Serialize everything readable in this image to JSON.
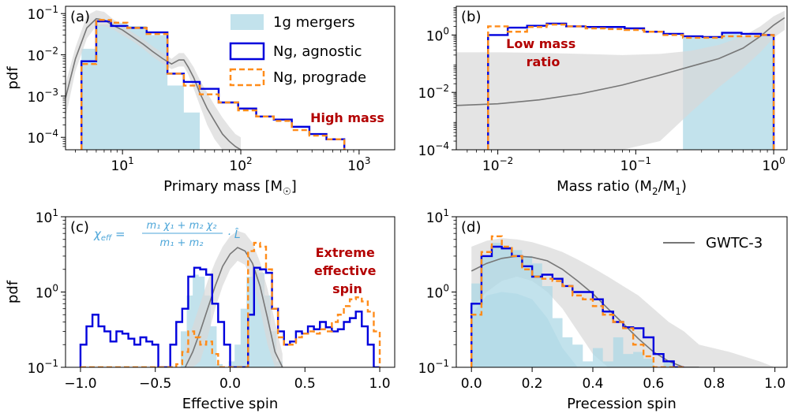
{
  "figure": {
    "colors": {
      "mergers_1g": "#add8e6",
      "ng_agnostic": "#0000dd",
      "ng_prograde": "#ff8c1a",
      "gwtc3_line": "#777777",
      "gwtc3_band": "#d9d9d9",
      "annotation": "#b30000",
      "formula": "#4da6d9"
    }
  },
  "chart_data": [
    {
      "type": "histogram",
      "panel_label": "(a)",
      "xlabel": "Primary mass [M",
      "xlabel_suffix": "]",
      "ylabel": "pdf",
      "xscale": "log",
      "yscale": "log",
      "xlim": [
        3.3,
        2000
      ],
      "ylim": [
        5e-05,
        0.15
      ],
      "xticks": [
        {
          "v": 10,
          "label": "10",
          "exp": "1"
        },
        {
          "v": 100,
          "label": "10",
          "exp": "2"
        },
        {
          "v": 1000,
          "label": "10",
          "exp": "3"
        }
      ],
      "yticks": [
        {
          "v": 0.0001,
          "label": "10",
          "exp": "−4"
        },
        {
          "v": 0.001,
          "label": "10",
          "exp": "−3"
        },
        {
          "v": 0.01,
          "label": "10",
          "exp": "−2"
        },
        {
          "v": 0.1,
          "label": "10",
          "exp": "−1"
        }
      ],
      "legend": {
        "position": "top-right",
        "entries": [
          "1g mergers",
          "Ng, agnostic",
          "Ng, prograde"
        ]
      },
      "annotation": "High mass",
      "edges": [
        4.5,
        6,
        8,
        11,
        16,
        24,
        33,
        45,
        65,
        95,
        135,
        190,
        270,
        380,
        530,
        750
      ],
      "fill_1g": [
        0.014,
        0.055,
        0.06,
        0.05,
        0.03,
        0.0018,
        0.0004
      ],
      "agnostic": [
        0.007,
        0.065,
        0.05,
        0.045,
        0.035,
        0.0035,
        0.0022,
        0.0015,
        0.0007,
        0.0005,
        0.00032,
        0.00027,
        0.00018,
        0.00012,
        9e-05
      ],
      "prograde": [
        0.006,
        0.07,
        0.06,
        0.045,
        0.032,
        0.0035,
        0.0018,
        0.0011,
        0.0007,
        0.00045,
        0.00032,
        0.00025,
        0.00015,
        0.00011,
        9e-05
      ],
      "gwtc3": {
        "x": [
          3.3,
          4,
          5,
          6,
          7,
          8.5,
          10,
          12,
          15,
          18,
          22,
          26,
          30,
          33,
          36,
          40,
          45,
          52,
          60,
          70,
          80,
          90,
          100
        ],
        "y": [
          0.0009,
          0.008,
          0.045,
          0.075,
          0.07,
          0.05,
          0.04,
          0.028,
          0.018,
          0.012,
          0.008,
          0.006,
          0.0075,
          0.0075,
          0.005,
          0.0028,
          0.0012,
          0.0005,
          0.00025,
          0.00012,
          8e-05,
          6e-05,
          5e-05
        ],
        "lo": [
          0.0003,
          0.004,
          0.025,
          0.05,
          0.05,
          0.04,
          0.03,
          0.022,
          0.014,
          0.009,
          0.006,
          0.0045,
          0.0052,
          0.0052,
          0.0033,
          0.0015,
          0.0006,
          0.0002,
          9e-05,
          5e-05,
          5e-05,
          5e-05,
          5e-05
        ],
        "hi": [
          0.002,
          0.015,
          0.09,
          0.12,
          0.11,
          0.07,
          0.055,
          0.036,
          0.024,
          0.016,
          0.011,
          0.008,
          0.011,
          0.011,
          0.008,
          0.005,
          0.0025,
          0.0012,
          0.0006,
          0.0003,
          0.00018,
          0.00012,
          0.0001
        ]
      }
    },
    {
      "type": "histogram",
      "panel_label": "(b)",
      "xlabel": "Mass ratio (M",
      "xlabel_sub1": "2",
      "xlabel_mid": "/M",
      "xlabel_sub2": "1",
      "xlabel_suffix": ")",
      "xscale": "log",
      "yscale": "log",
      "xlim": [
        0.005,
        1.25
      ],
      "ylim": [
        0.0001,
        10
      ],
      "xticks": [
        {
          "v": 0.01,
          "label": "10",
          "exp": "−2"
        },
        {
          "v": 0.1,
          "label": "10",
          "exp": "−1"
        },
        {
          "v": 1,
          "label": "10",
          "exp": "0"
        }
      ],
      "yticks": [
        {
          "v": 0.0001,
          "label": "10",
          "exp": "−4"
        },
        {
          "v": 0.01,
          "label": "10",
          "exp": "−2"
        },
        {
          "v": 1,
          "label": "10",
          "exp": "0"
        }
      ],
      "annotation_lines": [
        "Low mass",
        "ratio"
      ],
      "edges": [
        0.0085,
        0.0118,
        0.0163,
        0.0226,
        0.0313,
        0.0433,
        0.06,
        0.0831,
        0.115,
        0.159,
        0.22,
        0.305,
        0.422,
        0.585,
        0.81,
        1.0
      ],
      "fill_edges": [
        0.22,
        0.305,
        0.422,
        0.585,
        0.81,
        1.0
      ],
      "fill_1g": [
        0.8,
        0.9,
        1.1,
        0.9,
        0.9
      ],
      "agnostic": [
        1.0,
        1.8,
        2.1,
        2.5,
        2.0,
        1.9,
        1.9,
        1.7,
        1.3,
        1.1,
        0.9,
        0.85,
        1.2,
        1.1,
        1.0
      ],
      "prograde": [
        2.0,
        1.3,
        1.9,
        2.3,
        2.0,
        1.7,
        1.6,
        1.5,
        1.3,
        1.0,
        0.8,
        0.8,
        0.9,
        0.9,
        1.0
      ],
      "gwtc3": {
        "x": [
          0.005,
          0.01,
          0.02,
          0.04,
          0.08,
          0.15,
          0.25,
          0.4,
          0.6,
          0.8,
          1.0,
          1.2
        ],
        "y": [
          0.0035,
          0.004,
          0.0055,
          0.009,
          0.018,
          0.04,
          0.08,
          0.15,
          0.35,
          0.9,
          2.2,
          4.0
        ],
        "lo": [
          0.0001,
          0.0001,
          0.0001,
          0.0001,
          0.0001,
          0.0002,
          0.002,
          0.015,
          0.07,
          0.25,
          0.8,
          1.5
        ],
        "hi": [
          0.25,
          0.25,
          0.24,
          0.22,
          0.2,
          0.22,
          0.28,
          0.45,
          0.9,
          2.0,
          4.5,
          7.0
        ]
      }
    },
    {
      "type": "histogram",
      "panel_label": "(c)",
      "formula_lhs": "χ",
      "formula_sub": "eff",
      "formula_num": "m₁ χ₁ + m₂ χ₂",
      "formula_den": "m₁ + m₂",
      "formula_tail": "· L̂",
      "xlabel": "Effective spin",
      "ylabel": "pdf",
      "xscale": "linear",
      "yscale": "log",
      "xlim": [
        -1.1,
        1.1
      ],
      "ylim": [
        0.1,
        10
      ],
      "xticks": [
        {
          "v": -1,
          "label": "−1.0"
        },
        {
          "v": -0.5,
          "label": "−0.5"
        },
        {
          "v": 0,
          "label": "0.0"
        },
        {
          "v": 0.5,
          "label": "0.5"
        },
        {
          "v": 1,
          "label": "1.0"
        }
      ],
      "yticks": [
        {
          "v": 0.1,
          "label": "10",
          "exp": "−1"
        },
        {
          "v": 1,
          "label": "10",
          "exp": "0"
        },
        {
          "v": 10,
          "label": "10",
          "exp": "1"
        }
      ],
      "annotation_lines": [
        "Extreme",
        "effective",
        "spin"
      ],
      "fill_edges": [
        -0.33,
        -0.29,
        -0.25,
        -0.21,
        -0.17,
        -0.13,
        -0.09,
        -0.05,
        -0.01,
        0.03,
        0.07,
        0.11,
        0.15,
        0.19,
        0.23,
        0.27,
        0.31,
        0.35
      ],
      "fill_1g": [
        0.3,
        0.9,
        1.7,
        1.6,
        0.9,
        0.35,
        0.11,
        0.1,
        0.12,
        0.2,
        0.6,
        1.6,
        2.1,
        1.8,
        0.9,
        0.3,
        0.12
      ],
      "edges": [
        -1.0,
        -0.96,
        -0.92,
        -0.88,
        -0.84,
        -0.8,
        -0.76,
        -0.72,
        -0.68,
        -0.64,
        -0.6,
        -0.56,
        -0.52,
        -0.48,
        -0.44,
        -0.4,
        -0.36,
        -0.32,
        -0.28,
        -0.24,
        -0.2,
        -0.16,
        -0.12,
        -0.08,
        -0.04,
        0.0,
        0.04,
        0.08,
        0.12,
        0.16,
        0.2,
        0.24,
        0.28,
        0.32,
        0.36,
        0.4,
        0.44,
        0.48,
        0.52,
        0.56,
        0.6,
        0.64,
        0.68,
        0.72,
        0.76,
        0.8,
        0.84,
        0.88,
        0.92,
        0.96,
        1.0
      ],
      "agnostic": [
        0.2,
        0.35,
        0.5,
        0.35,
        0.3,
        0.22,
        0.3,
        0.28,
        0.24,
        0.2,
        0.25,
        0.22,
        0.2,
        0.1,
        0.1,
        0.2,
        0.4,
        0.6,
        1.6,
        2.1,
        2.0,
        1.7,
        0.7,
        0.4,
        0.2,
        0.1,
        0.1,
        0.1,
        0.5,
        2.1,
        2.0,
        1.8,
        0.6,
        0.3,
        0.2,
        0.22,
        0.3,
        0.28,
        0.35,
        0.32,
        0.4,
        0.34,
        0.3,
        0.32,
        0.4,
        0.45,
        0.55,
        0.35,
        0.2,
        0.1
      ],
      "prograde": [
        0.1,
        0.1,
        0.1,
        0.1,
        0.1,
        0.1,
        0.1,
        0.1,
        0.1,
        0.1,
        0.1,
        0.1,
        0.1,
        0.1,
        0.1,
        0.1,
        0.11,
        0.16,
        0.3,
        0.25,
        0.2,
        0.22,
        0.15,
        0.1,
        0.1,
        0.1,
        0.1,
        0.1,
        3.5,
        4.5,
        4.0,
        2.0,
        0.6,
        0.25,
        0.2,
        0.2,
        0.25,
        0.28,
        0.3,
        0.28,
        0.32,
        0.3,
        0.4,
        0.5,
        0.65,
        0.8,
        0.85,
        0.75,
        0.55,
        0.3
      ],
      "gwtc3": {
        "x": [
          -0.3,
          -0.25,
          -0.2,
          -0.15,
          -0.1,
          -0.05,
          0.0,
          0.05,
          0.1,
          0.15,
          0.2,
          0.25,
          0.3,
          0.35
        ],
        "y": [
          0.1,
          0.16,
          0.3,
          0.6,
          1.2,
          2.2,
          3.2,
          3.9,
          3.5,
          2.4,
          1.2,
          0.45,
          0.16,
          0.1
        ],
        "lo": [
          0.1,
          0.1,
          0.12,
          0.25,
          0.6,
          1.2,
          2.0,
          2.6,
          2.3,
          1.4,
          0.6,
          0.2,
          0.1,
          0.1
        ],
        "hi": [
          0.2,
          0.35,
          0.7,
          1.4,
          2.5,
          4.0,
          5.5,
          6.5,
          6.0,
          4.5,
          2.5,
          1.1,
          0.4,
          0.15
        ]
      }
    },
    {
      "type": "histogram",
      "panel_label": "(d)",
      "xlabel": "Precession spin",
      "xscale": "linear",
      "yscale": "log",
      "xlim": [
        -0.05,
        1.04
      ],
      "ylim": [
        0.1,
        10
      ],
      "xticks": [
        {
          "v": 0,
          "label": "0.0"
        },
        {
          "v": 0.2,
          "label": "0.2"
        },
        {
          "v": 0.4,
          "label": "0.4"
        },
        {
          "v": 0.6,
          "label": "0.6"
        },
        {
          "v": 0.8,
          "label": "0.8"
        },
        {
          "v": 1,
          "label": "1.0"
        }
      ],
      "yticks": [
        {
          "v": 0.1,
          "label": "10",
          "exp": "−1"
        },
        {
          "v": 1,
          "label": "10",
          "exp": "0"
        },
        {
          "v": 10,
          "label": "10",
          "exp": "1"
        }
      ],
      "legend": {
        "position": "top-right",
        "entries": [
          "GWTC-3"
        ]
      },
      "edges": [
        0.0,
        0.033,
        0.067,
        0.1,
        0.133,
        0.167,
        0.2,
        0.233,
        0.267,
        0.3,
        0.333,
        0.367,
        0.4,
        0.433,
        0.467,
        0.5,
        0.533,
        0.567,
        0.6,
        0.633,
        0.667,
        0.7
      ],
      "fill_1g": [
        1.3,
        3.0,
        4.5,
        4.0,
        3.6,
        3.0,
        2.4,
        1.2,
        0.45,
        0.25,
        0.2,
        0.12,
        0.18,
        0.12,
        0.25,
        0.15,
        0.16,
        0.13,
        0.1,
        0.12,
        0.1
      ],
      "fill_1g_inner": {
        "x": [
          0.0,
          0.05,
          0.1,
          0.15,
          0.2,
          0.25,
          0.3,
          0.35
        ],
        "y": [
          0.5,
          0.9,
          1.0,
          0.95,
          0.8,
          0.45,
          0.18,
          0.1
        ]
      },
      "agnostic": [
        0.7,
        3.0,
        4.0,
        3.8,
        3.0,
        2.2,
        1.6,
        1.7,
        1.5,
        1.2,
        1.0,
        1.0,
        0.8,
        0.55,
        0.4,
        0.34,
        0.33,
        0.25,
        0.15,
        0.12,
        0.1
      ],
      "prograde": [
        0.5,
        3.4,
        5.5,
        4.0,
        3.0,
        2.0,
        1.6,
        1.5,
        1.4,
        1.2,
        0.9,
        0.8,
        0.65,
        0.5,
        0.4,
        0.33,
        0.2,
        0.14,
        0.1,
        0.1,
        0.1
      ],
      "gwtc3": {
        "x": [
          0.0,
          0.05,
          0.1,
          0.15,
          0.2,
          0.25,
          0.3,
          0.35,
          0.4,
          0.45,
          0.5,
          0.55,
          0.6,
          0.65,
          0.7,
          0.75
        ],
        "y": [
          1.9,
          2.4,
          2.8,
          3.0,
          2.9,
          2.6,
          2.0,
          1.4,
          0.95,
          0.6,
          0.38,
          0.24,
          0.16,
          0.12,
          0.1,
          0.1
        ],
        "lo": [
          0.6,
          1.0,
          1.4,
          1.6,
          1.4,
          1.0,
          0.6,
          0.3,
          0.15,
          0.1,
          0.1,
          0.1,
          0.1,
          0.1,
          0.1,
          0.1
        ],
        "hi": [
          4.0,
          4.8,
          5.2,
          5.0,
          4.6,
          4.0,
          3.4,
          2.7,
          2.1,
          1.6,
          1.2,
          0.9,
          0.6,
          0.4,
          0.3,
          0.2
        ]
      },
      "gwtc3_band_ext": {
        "x": [
          0.75,
          0.85,
          0.95,
          1.0
        ],
        "hi": [
          0.2,
          0.16,
          0.12,
          0.1
        ]
      }
    }
  ]
}
